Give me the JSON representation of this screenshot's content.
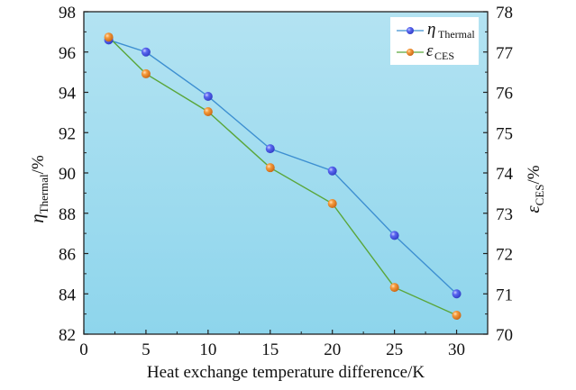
{
  "chart_data": {
    "type": "line",
    "title": "",
    "xlabel": "Heat exchange temperature difference/K",
    "ylabel_left": {
      "symbol": "η",
      "subscript": "Thermal",
      "suffix": "/%"
    },
    "ylabel_right": {
      "symbol": "ε",
      "subscript": "CES",
      "suffix": "/%"
    },
    "x": [
      2,
      5,
      10,
      15,
      20,
      25,
      30
    ],
    "xlim": [
      0,
      32.5
    ],
    "xticks": [
      0,
      5,
      10,
      15,
      20,
      25,
      30
    ],
    "ylim_left": [
      82,
      98
    ],
    "yticks_left": [
      82,
      84,
      86,
      88,
      90,
      92,
      94,
      96,
      98
    ],
    "ylim_right": [
      70,
      78
    ],
    "yticks_right": [
      70,
      71,
      72,
      73,
      74,
      75,
      76,
      77,
      78
    ],
    "grid": false,
    "legend_position": "top-right",
    "series": [
      {
        "name": "η_Thermal",
        "legend_symbol": "η",
        "legend_subscript": "Thermal",
        "axis": "left",
        "line_color": "#3d8fd1",
        "marker_color": "#4a5ae8",
        "values": [
          96.6,
          96.0,
          93.8,
          91.2,
          90.1,
          86.9,
          84.0
        ]
      },
      {
        "name": "ε_CES",
        "legend_symbol": "ε",
        "legend_subscript": "CES",
        "axis": "right",
        "line_color": "#5aa63a",
        "marker_color": "#f08a2c",
        "values": [
          77.37,
          76.46,
          75.52,
          74.13,
          73.24,
          71.16,
          70.47
        ]
      }
    ]
  }
}
